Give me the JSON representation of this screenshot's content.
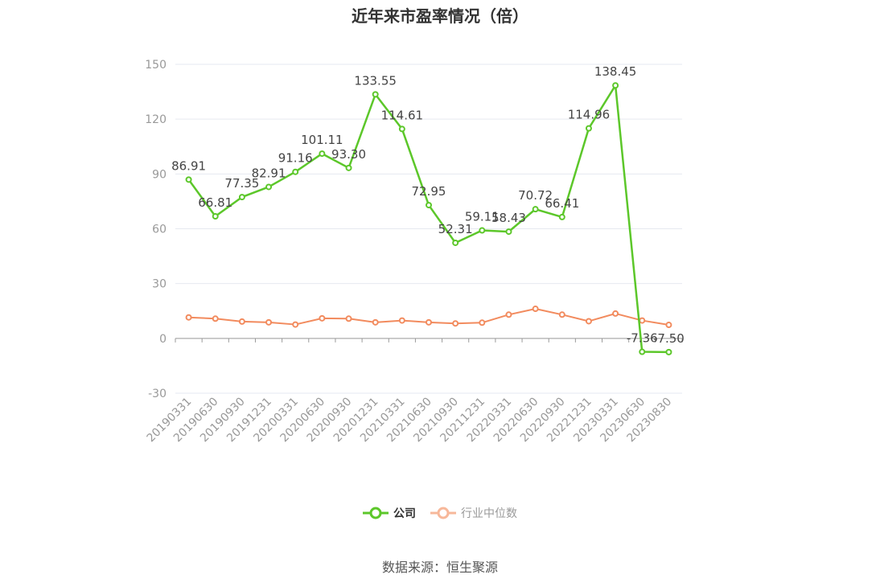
{
  "title": "近年来市盈率情况（倍）",
  "source": "数据来源：恒生聚源",
  "colors": {
    "company": "#5cc72a",
    "industry": "#f28b5e",
    "industry_legend": "#f7b89a",
    "axis_text": "#999999",
    "grid": "#e6e9f0",
    "label": "#444444"
  },
  "legend": [
    {
      "name": "公司",
      "color": "#5cc72a"
    },
    {
      "name": "行业中位数",
      "color": "#f7b89a"
    }
  ],
  "chart_data": {
    "type": "line",
    "title": "近年来市盈率情况（倍）",
    "categories": [
      "20190331",
      "20190630",
      "20190930",
      "20191231",
      "20200331",
      "20200630",
      "20200930",
      "20201231",
      "20210331",
      "20210630",
      "20210930",
      "20211231",
      "20220331",
      "20220630",
      "20220930",
      "20221231",
      "20230331",
      "20230630",
      "20230830"
    ],
    "ylim": [
      -30,
      150
    ],
    "yticks": [
      -30,
      0,
      30,
      60,
      90,
      120,
      150
    ],
    "grid": true,
    "legend_position": "bottom",
    "series": [
      {
        "name": "公司",
        "values": [
          86.91,
          66.81,
          77.35,
          82.91,
          91.16,
          101.11,
          93.3,
          133.55,
          114.61,
          72.95,
          52.31,
          59.11,
          58.43,
          70.72,
          66.41,
          114.96,
          138.45,
          -7.36,
          -7.5
        ],
        "labels": [
          "86.91",
          "66.81",
          "77.35",
          "82.91",
          "91.16",
          "101.11",
          "93.30",
          "133.55",
          "114.61",
          "72.95",
          "52.31",
          "59.11",
          "58.43",
          "70.72",
          "66.41",
          "114.96",
          "138.45",
          "-7.36",
          "-7.50"
        ]
      },
      {
        "name": "行业中位数",
        "values": [
          11.5,
          10.8,
          9.2,
          8.8,
          7.6,
          11.0,
          10.8,
          8.8,
          9.8,
          8.8,
          8.2,
          8.6,
          13.0,
          16.2,
          13.0,
          9.4,
          13.6,
          9.8,
          7.4
        ]
      }
    ]
  }
}
